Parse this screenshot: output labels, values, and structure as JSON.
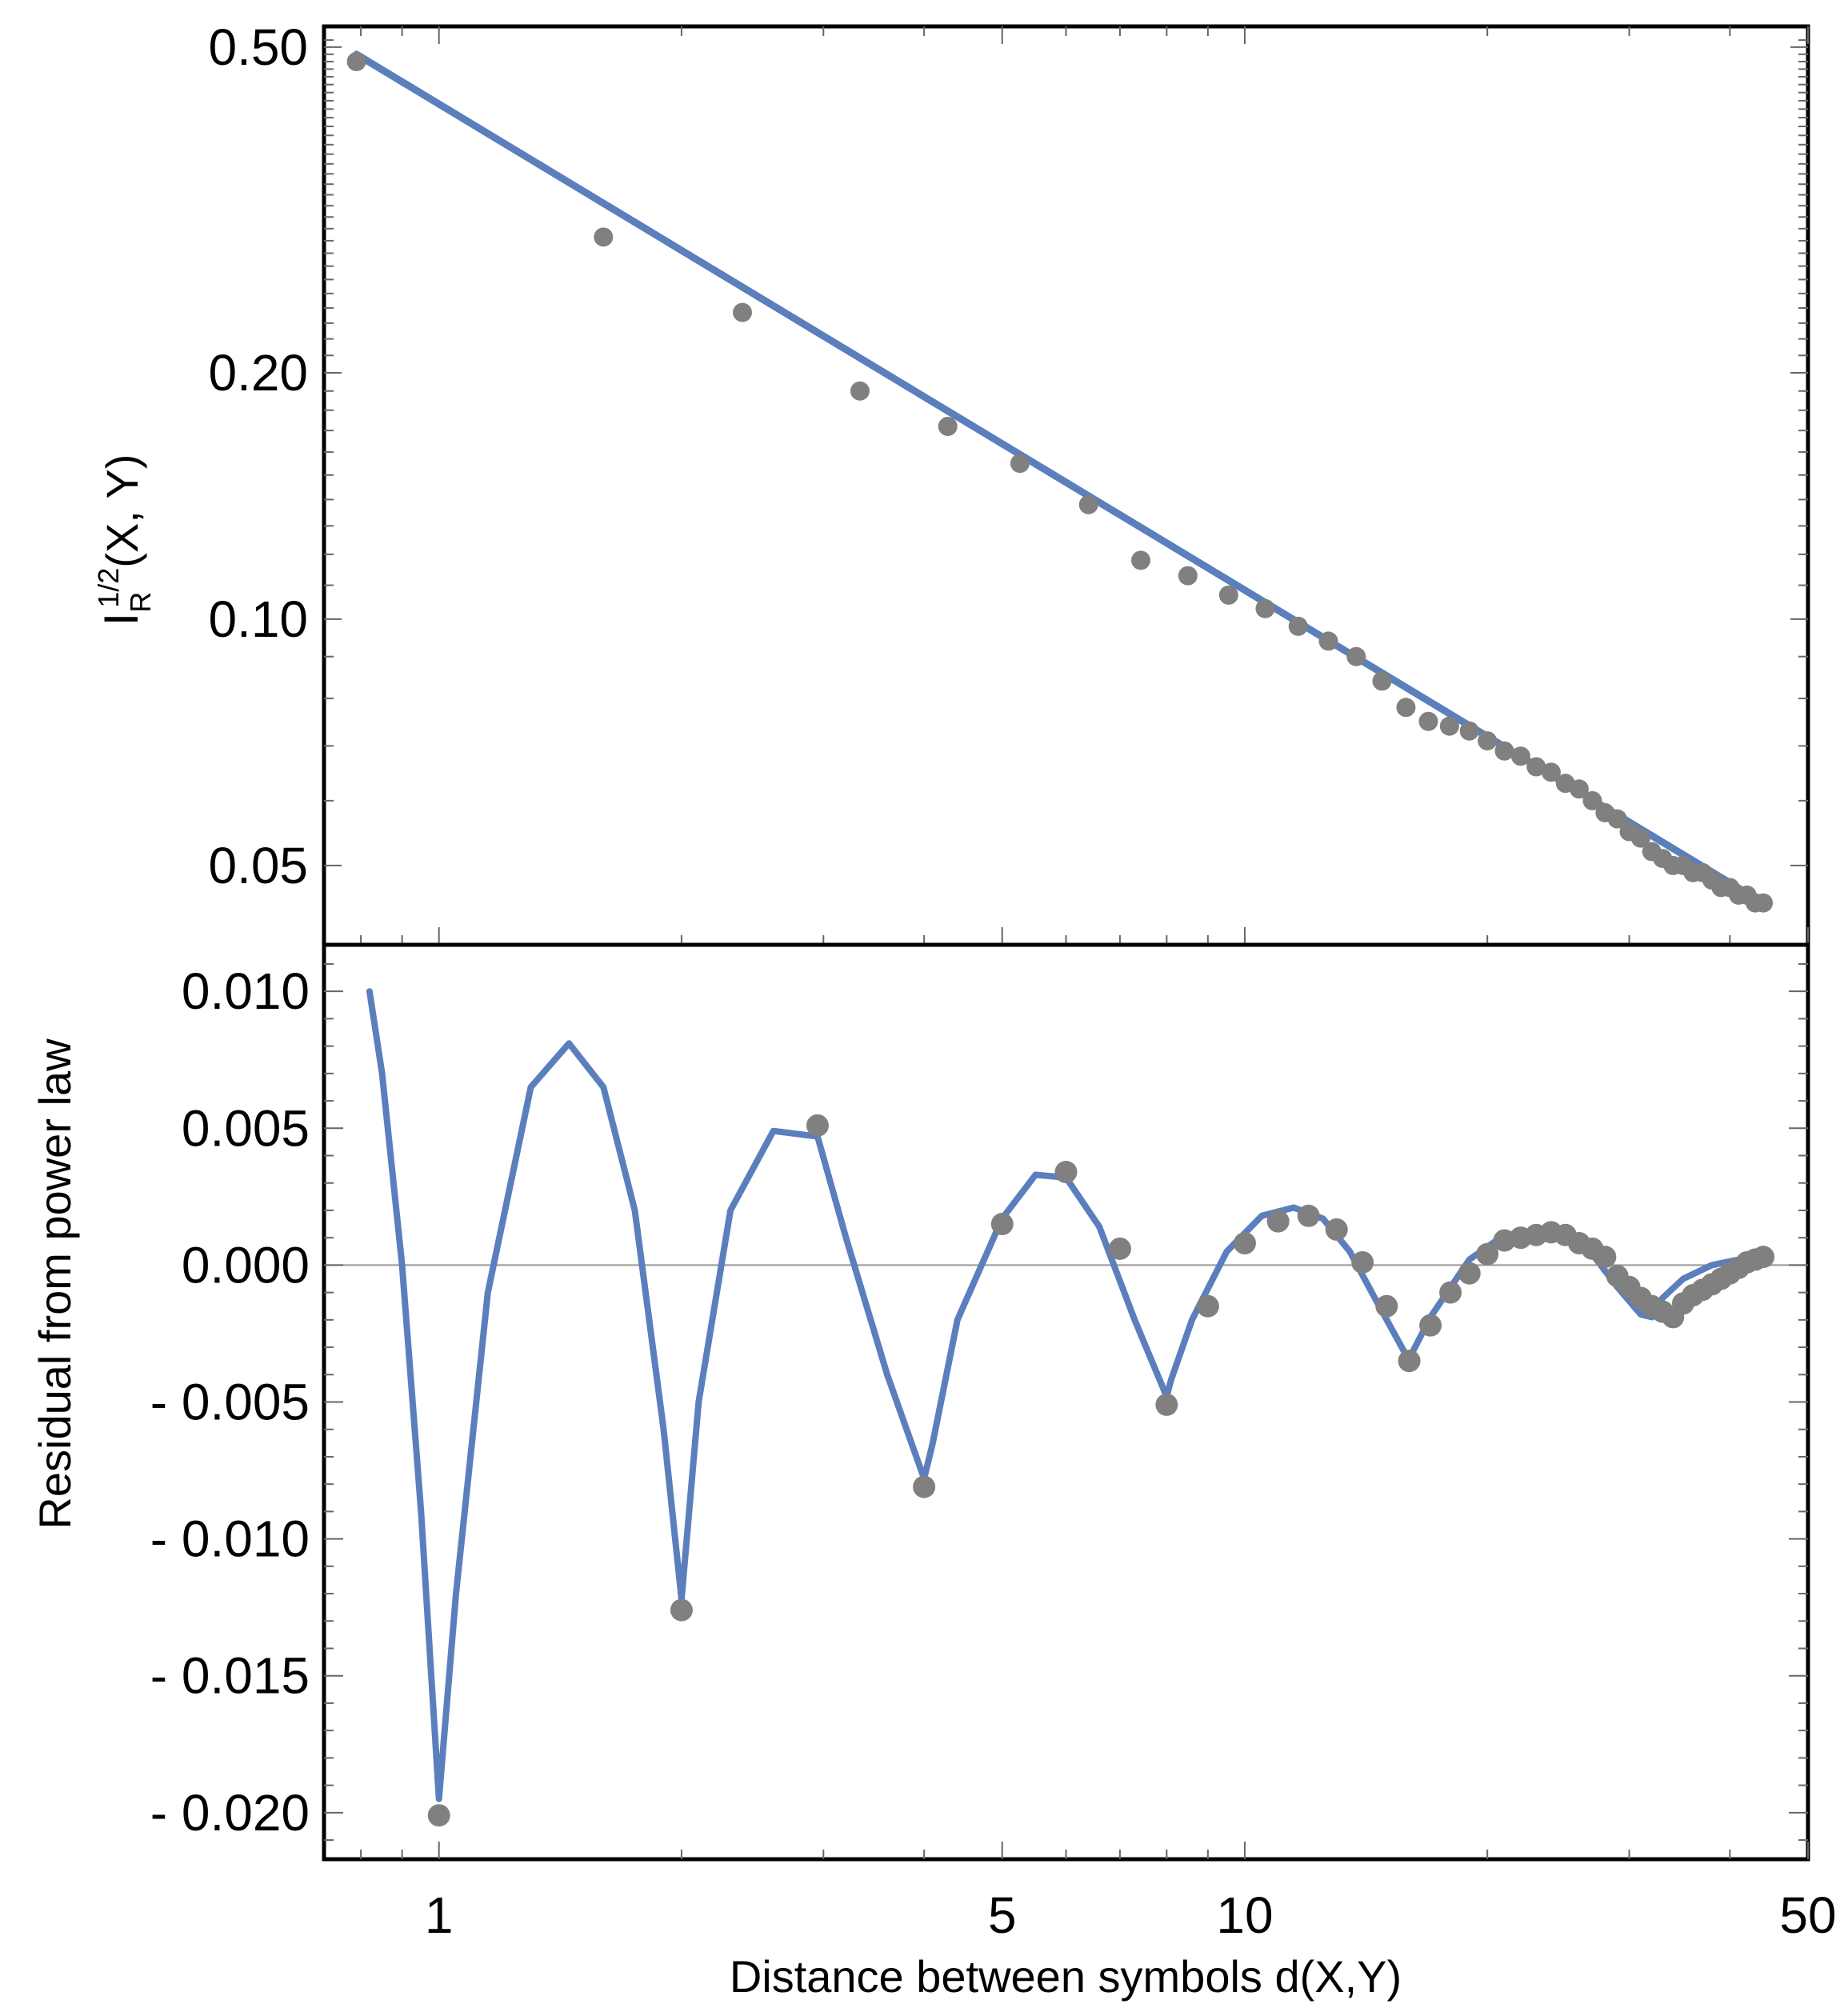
{
  "chart_data": [
    {
      "type": "scatter",
      "panel": "top",
      "ylabel_main": "I",
      "ylabel_sub": "R",
      "ylabel_sup": "1/2",
      "ylabel_tail": "(X, Y)",
      "xscale": "log",
      "yscale": "log",
      "xlim": [
        0.72,
        50
      ],
      "ylim": [
        0.04,
        0.53
      ],
      "yticks": [
        0.05,
        0.1,
        0.2,
        0.5
      ],
      "ytick_labels": [
        "0.05",
        "0.10",
        "0.20",
        "0.50"
      ],
      "series": [
        {
          "kind": "points",
          "color": "#808080",
          "x": [
            0.79,
            1.6,
            2.38,
            3.33,
            4.28,
            5.26,
            6.4,
            7.43,
            8.5,
            9.55,
            10.6,
            11.65,
            12.7,
            13.75,
            14.8,
            15.85,
            16.9,
            17.95,
            19.0,
            20.0,
            21.0,
            22.0,
            23.0,
            24.0,
            25.0,
            26.0,
            27.0,
            28.0,
            29.0,
            30.0,
            31.0,
            32.0,
            33.0,
            34.0,
            35.0,
            36.0,
            37.0,
            38.0,
            39.0,
            40.0,
            41.0,
            42.0,
            43.0,
            44.0
          ],
          "y": [
            0.48,
            0.293,
            0.237,
            0.19,
            0.172,
            0.155,
            0.138,
            0.118,
            0.113,
            0.107,
            0.103,
            0.098,
            0.094,
            0.09,
            0.084,
            0.078,
            0.075,
            0.074,
            0.073,
            0.071,
            0.069,
            0.068,
            0.066,
            0.065,
            0.063,
            0.062,
            0.06,
            0.058,
            0.057,
            0.055,
            0.054,
            0.052,
            0.051,
            0.05,
            0.05,
            0.049,
            0.049,
            0.048,
            0.047,
            0.047,
            0.046,
            0.046,
            0.045,
            0.045
          ]
        },
        {
          "kind": "fit-line",
          "color": "#5b7fbd",
          "x": [
            0.79,
            44.0
          ],
          "y": [
            0.49,
            0.045
          ]
        }
      ]
    },
    {
      "type": "line",
      "panel": "bottom",
      "xlabel": "Distance between symbols d(X,Y)",
      "ylabel": "Residual from power law",
      "xscale": "log",
      "xlim": [
        0.72,
        50
      ],
      "ylim": [
        -0.0217,
        0.0117
      ],
      "xticks": [
        1,
        5,
        10,
        50
      ],
      "xtick_labels": [
        "1",
        "5",
        "10",
        "50"
      ],
      "yticks": [
        0.01,
        0.005,
        0.0,
        -0.005,
        -0.01,
        -0.015,
        -0.02
      ],
      "ytick_labels": [
        "0.010",
        "0.005",
        "0.000",
        "- 0.005",
        "- 0.010",
        "- 0.015",
        "- 0.020"
      ],
      "series": [
        {
          "kind": "residual-curve",
          "color": "#5b7fbd",
          "x": [
            0.82,
            0.85,
            0.9,
            0.95,
            1.0,
            1.05,
            1.15,
            1.3,
            1.45,
            1.6,
            1.75,
            1.9,
            2.0,
            2.1,
            2.3,
            2.6,
            2.95,
            3.2,
            3.6,
            4.0,
            4.1,
            4.4,
            5.0,
            5.5,
            6.0,
            6.6,
            7.3,
            8.0,
            8.1,
            8.6,
            9.5,
            10.5,
            11.5,
            12.5,
            13.5,
            14.5,
            16.0,
            16.2,
            17.0,
            19.0,
            21.0,
            23.0,
            25.0,
            27.0,
            29.0,
            31.0,
            32.0,
            33.0,
            35.0,
            38.0,
            41.0,
            44.0
          ],
          "y": [
            0.01,
            0.007,
            0.0,
            -0.009,
            -0.0195,
            -0.012,
            -0.001,
            0.0065,
            0.0081,
            0.0065,
            0.002,
            -0.006,
            -0.0122,
            -0.005,
            0.002,
            0.0049,
            0.0047,
            0.001,
            -0.004,
            -0.0078,
            -0.0065,
            -0.002,
            0.0017,
            0.0033,
            0.0032,
            0.0014,
            -0.002,
            -0.0048,
            -0.0042,
            -0.002,
            0.0005,
            0.0018,
            0.0021,
            0.0017,
            0.0005,
            -0.0012,
            -0.0035,
            -0.0031,
            -0.0019,
            0.0002,
            0.0011,
            0.0012,
            0.001,
            0.0004,
            -0.0008,
            -0.0018,
            -0.0019,
            -0.0012,
            -0.0005,
            0.0,
            0.0002,
            0.0004
          ]
        },
        {
          "kind": "points",
          "color": "#808080",
          "x": [
            1.0,
            2.0,
            2.95,
            4.0,
            5.0,
            6.0,
            7.0,
            8.0,
            9.0,
            10.0,
            11.0,
            12.0,
            13.0,
            14.0,
            15.0,
            16.0,
            17.0,
            18.0,
            19.0,
            20.0,
            21.0,
            22.0,
            23.0,
            24.0,
            25.0,
            26.0,
            27.0,
            28.0,
            29.0,
            30.0,
            31.0,
            32.0,
            33.0,
            34.0,
            35.0,
            36.0,
            37.0,
            38.0,
            39.0,
            40.0,
            41.0,
            42.0,
            43.0,
            44.0
          ],
          "y": [
            -0.0201,
            -0.0126,
            0.0051,
            -0.0081,
            0.0015,
            0.0034,
            0.0006,
            -0.0051,
            -0.0015,
            0.0008,
            0.0016,
            0.0018,
            0.0013,
            0.0001,
            -0.0015,
            -0.0035,
            -0.0022,
            -0.001,
            -0.0003,
            0.0004,
            0.0009,
            0.001,
            0.0011,
            0.0012,
            0.0011,
            0.0008,
            0.0006,
            0.0003,
            -0.0004,
            -0.0008,
            -0.0012,
            -0.0015,
            -0.0017,
            -0.0019,
            -0.0014,
            -0.0011,
            -0.0009,
            -0.0007,
            -0.0005,
            -0.0003,
            -0.0001,
            0.0001,
            0.0002,
            0.0003
          ]
        }
      ]
    }
  ]
}
